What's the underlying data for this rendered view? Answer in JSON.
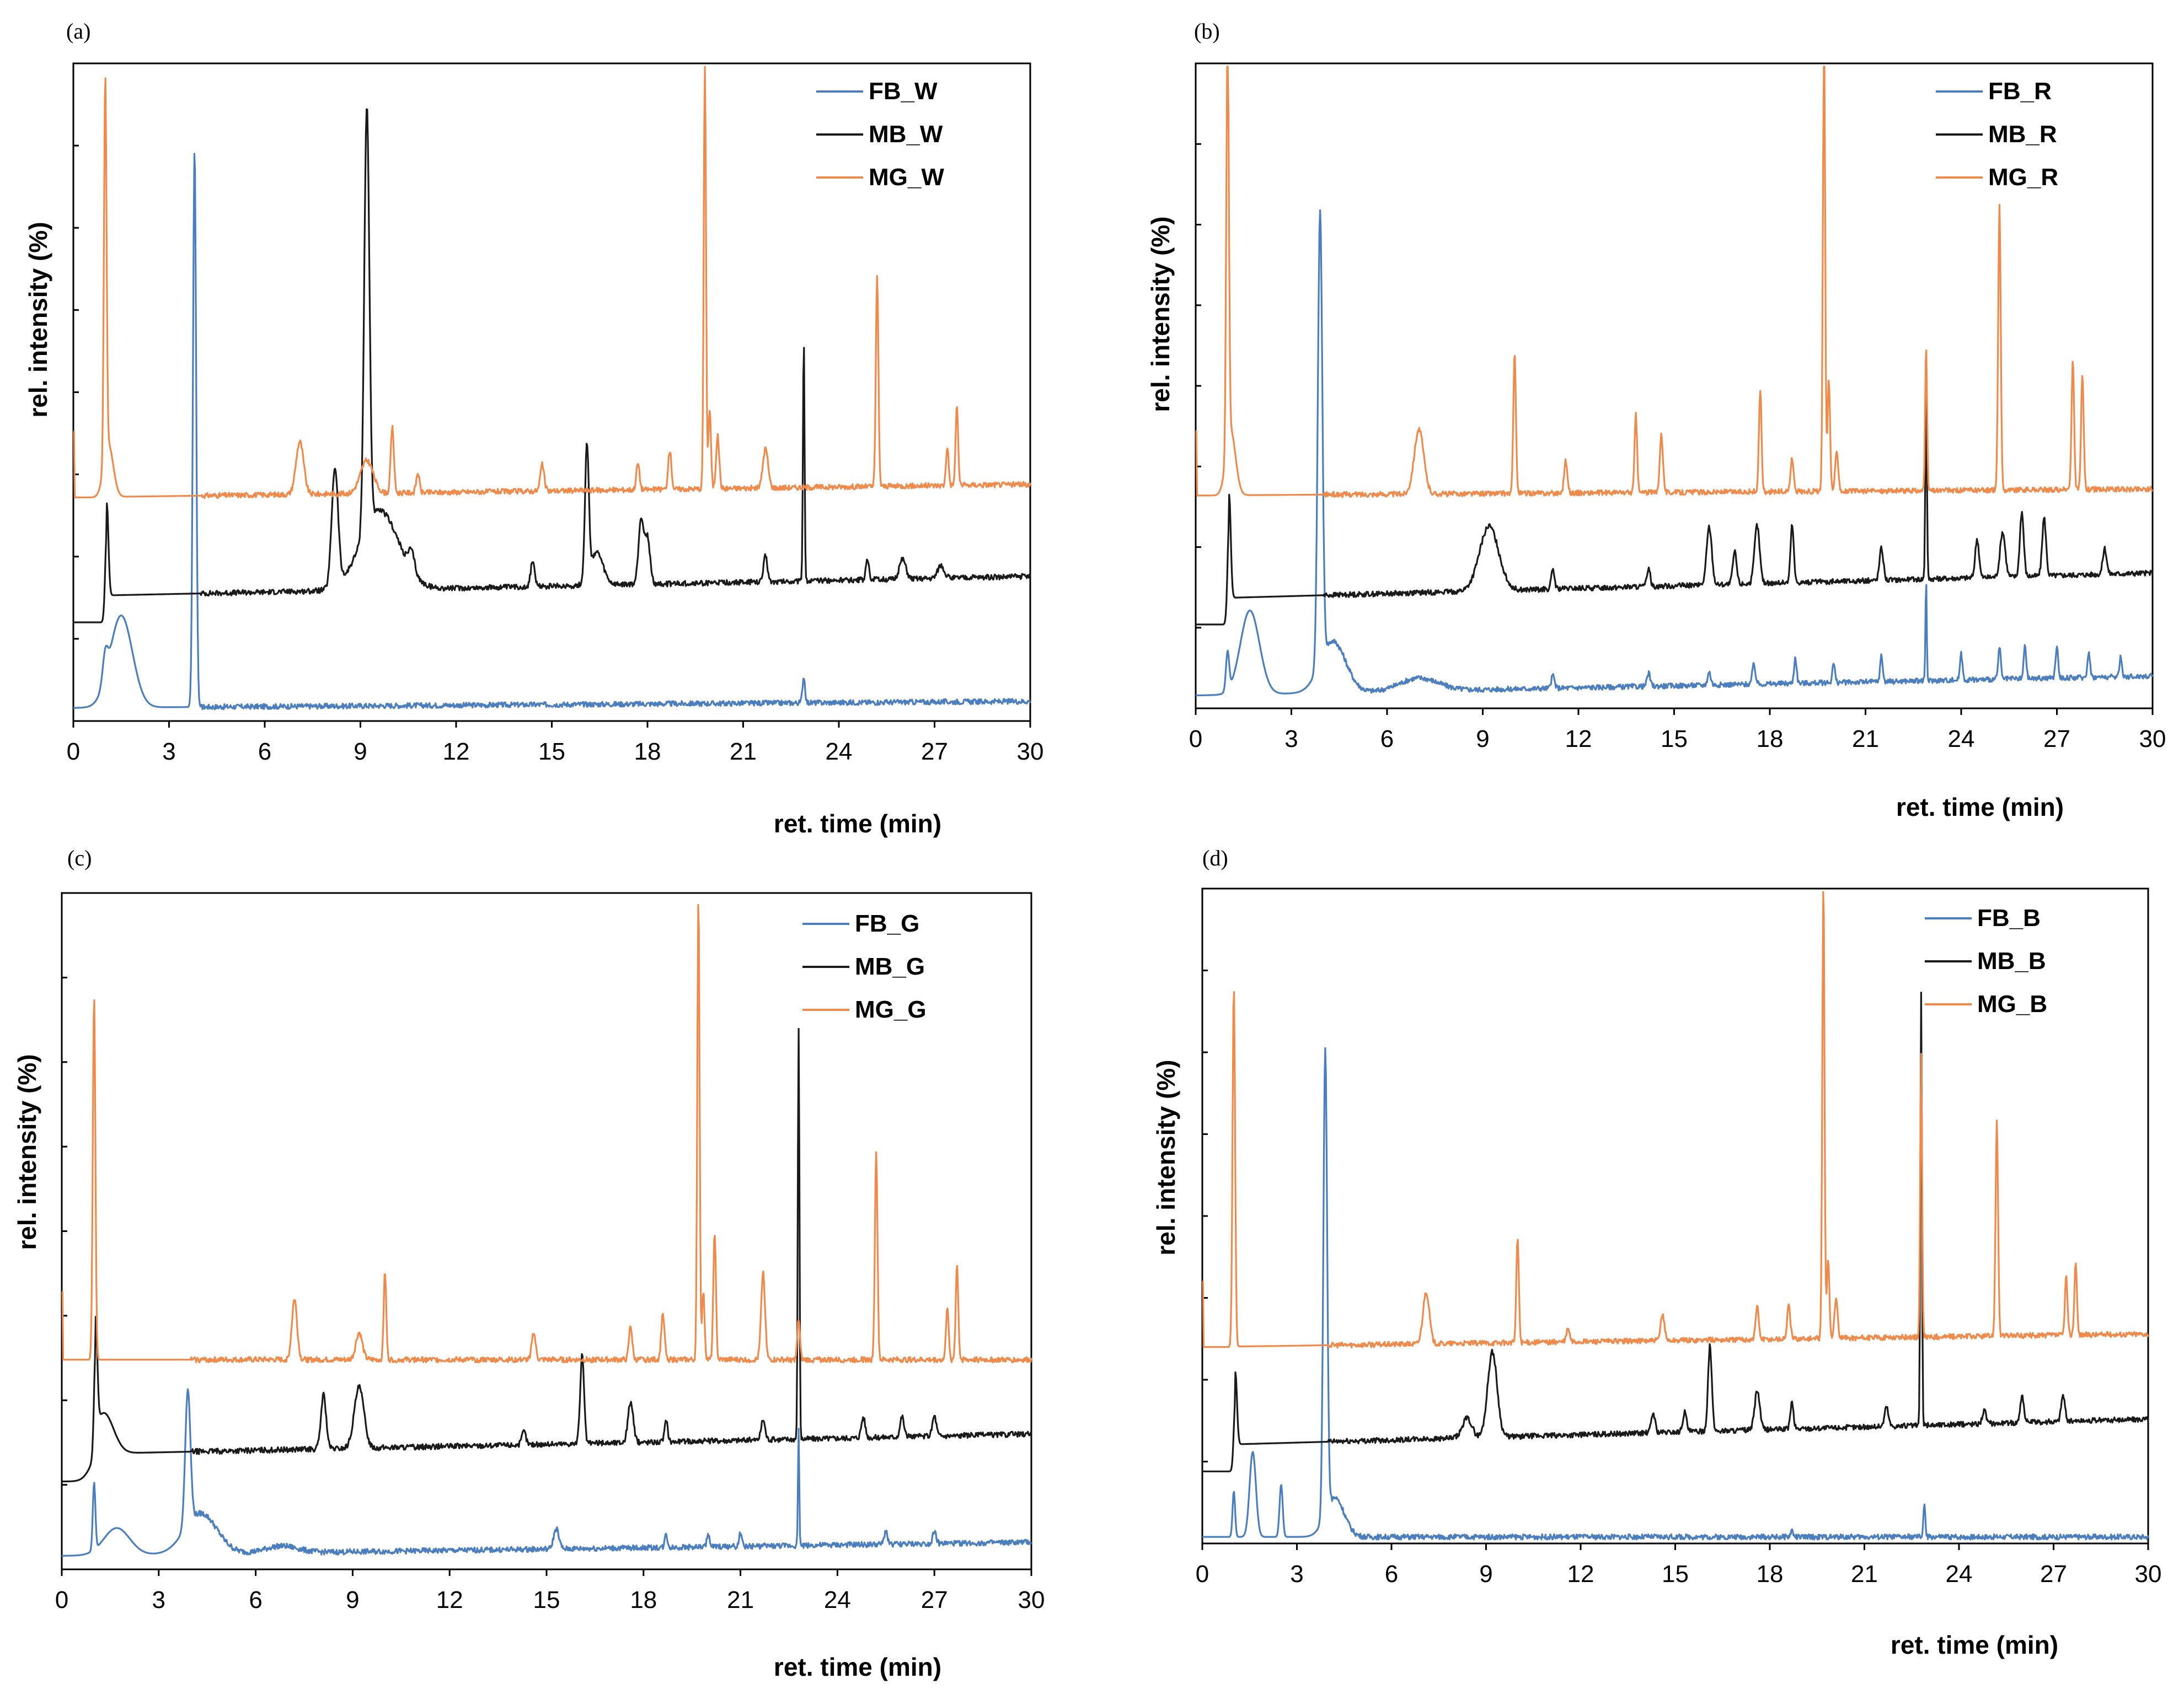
{
  "chart_data": [
    {
      "type": "line",
      "panel_label": "(a)",
      "xlabel": "ret. time (min)",
      "ylabel": "rel. intensity (%)",
      "xlim": [
        0,
        30
      ],
      "xticks": [
        "0",
        "3",
        "6",
        "9",
        "12",
        "15",
        "18",
        "21",
        "24",
        "27",
        "30"
      ],
      "ylim": [
        0,
        100
      ],
      "y_minor_ticks": 8,
      "legend_position": "top-right",
      "series": [
        {
          "name": "FB_W",
          "color": "#4a7ebf",
          "baseline": 2,
          "base_end": 3,
          "peaks": [
            [
              1.0,
              4,
              0.08
            ],
            [
              1.5,
              14,
              0.35
            ],
            [
              3.8,
              85,
              0.05
            ],
            [
              22.9,
              4,
              0.04
            ]
          ]
        },
        {
          "name": "MB_W",
          "color": "#1a1a1a",
          "baseline": 19,
          "base_end": 22,
          "start_jump": 1.05,
          "peaks": [
            [
              1.05,
              14,
              0.05
            ],
            [
              8.2,
              18,
              0.1
            ],
            [
              9.2,
              64,
              0.08
            ],
            [
              9.6,
              12,
              0.6
            ],
            [
              10.6,
              3,
              0.1
            ],
            [
              14.4,
              4,
              0.06
            ],
            [
              16.1,
              20,
              0.06
            ],
            [
              16.4,
              5,
              0.2
            ],
            [
              17.8,
              10,
              0.08
            ],
            [
              18.0,
              7,
              0.08
            ],
            [
              21.7,
              4,
              0.06
            ],
            [
              22.9,
              37,
              0.025
            ],
            [
              24.9,
              3,
              0.05
            ],
            [
              26.0,
              3,
              0.1
            ],
            [
              27.2,
              2,
              0.1
            ]
          ]
        },
        {
          "name": "MG_W",
          "color": "#f08a4b",
          "baseline": 34,
          "base_end": 36,
          "start_jump": 1.0,
          "peaks": [
            [
              1.0,
              58,
              0.04
            ],
            [
              1.1,
              8,
              0.15
            ],
            [
              7.1,
              8,
              0.12
            ],
            [
              9.2,
              5,
              0.2
            ],
            [
              10.0,
              10,
              0.05
            ],
            [
              10.8,
              3,
              0.05
            ],
            [
              14.7,
              4,
              0.06
            ],
            [
              17.7,
              4,
              0.05
            ],
            [
              18.7,
              6,
              0.05
            ],
            [
              19.8,
              66,
              0.035
            ],
            [
              19.95,
              12,
              0.04
            ],
            [
              20.2,
              8,
              0.05
            ],
            [
              21.7,
              6,
              0.08
            ],
            [
              25.2,
              32,
              0.04
            ],
            [
              27.4,
              6,
              0.04
            ],
            [
              27.7,
              12,
              0.04
            ]
          ]
        }
      ]
    },
    {
      "type": "line",
      "panel_label": "(b)",
      "xlabel": "ret. time (min)",
      "ylabel": "rel. intensity (%)",
      "xlim": [
        0,
        30
      ],
      "xticks": [
        "0",
        "3",
        "6",
        "9",
        "12",
        "15",
        "18",
        "21",
        "24",
        "27",
        "30"
      ],
      "ylim": [
        0,
        100
      ],
      "y_minor_ticks": 8,
      "legend_position": "top-right",
      "series": [
        {
          "name": "FB_R",
          "color": "#4a7ebf",
          "baseline": 2,
          "base_end": 5,
          "peaks": [
            [
              1.0,
              6,
              0.05
            ],
            [
              1.7,
              13,
              0.3
            ],
            [
              3.9,
              70,
              0.07
            ],
            [
              4.3,
              8,
              0.4
            ],
            [
              7.0,
              2,
              0.6
            ],
            [
              11.2,
              2,
              0.05
            ],
            [
              14.2,
              2,
              0.05
            ],
            [
              16.1,
              2,
              0.05
            ],
            [
              17.5,
              3,
              0.05
            ],
            [
              18.8,
              4,
              0.04
            ],
            [
              20.0,
              3,
              0.04
            ],
            [
              21.5,
              4,
              0.04
            ],
            [
              22.9,
              16,
              0.02
            ],
            [
              24.0,
              4,
              0.04
            ],
            [
              25.2,
              5,
              0.04
            ],
            [
              26.0,
              5,
              0.04
            ],
            [
              27.0,
              5,
              0.04
            ],
            [
              28.0,
              4,
              0.04
            ],
            [
              29.0,
              3,
              0.04
            ]
          ]
        },
        {
          "name": "MB_R",
          "color": "#1a1a1a",
          "baseline": 17,
          "base_end": 21,
          "start_jump": 1.05,
          "peaks": [
            [
              1.05,
              16,
              0.05
            ],
            [
              9.2,
              10,
              0.3
            ],
            [
              11.2,
              3,
              0.05
            ],
            [
              14.2,
              3,
              0.05
            ],
            [
              16.1,
              9,
              0.08
            ],
            [
              16.9,
              5,
              0.06
            ],
            [
              17.6,
              9,
              0.08
            ],
            [
              18.7,
              9,
              0.05
            ],
            [
              21.5,
              5,
              0.06
            ],
            [
              22.9,
              30,
              0.025
            ],
            [
              24.5,
              6,
              0.06
            ],
            [
              25.3,
              7,
              0.08
            ],
            [
              25.9,
              10,
              0.06
            ],
            [
              26.6,
              9,
              0.06
            ],
            [
              28.5,
              4,
              0.06
            ]
          ]
        },
        {
          "name": "MG_R",
          "color": "#f08a4b",
          "baseline": 33,
          "base_end": 34,
          "start_jump": 1.0,
          "peaks": [
            [
              1.0,
              65,
              0.04
            ],
            [
              1.1,
              10,
              0.15
            ],
            [
              7.0,
              10,
              0.15
            ],
            [
              10.0,
              22,
              0.04
            ],
            [
              11.6,
              5,
              0.05
            ],
            [
              13.8,
              12,
              0.04
            ],
            [
              14.6,
              9,
              0.05
            ],
            [
              17.7,
              16,
              0.04
            ],
            [
              18.7,
              5,
              0.05
            ],
            [
              19.7,
              72,
              0.035
            ],
            [
              19.85,
              17,
              0.04
            ],
            [
              20.1,
              6,
              0.05
            ],
            [
              22.9,
              22,
              0.03
            ],
            [
              25.2,
              44,
              0.04
            ],
            [
              27.5,
              20,
              0.04
            ],
            [
              27.8,
              18,
              0.04
            ]
          ]
        }
      ]
    },
    {
      "type": "line",
      "panel_label": "(c)",
      "xlabel": "ret. time (min)",
      "ylabel": "rel. intensity (%)",
      "xlim": [
        0,
        30
      ],
      "xticks": [
        "0",
        "3",
        "6",
        "9",
        "12",
        "15",
        "18",
        "21",
        "24",
        "27",
        "30"
      ],
      "ylim": [
        0,
        100
      ],
      "y_minor_ticks": 8,
      "legend_position": "top-right",
      "series": [
        {
          "name": "FB_G",
          "color": "#4a7ebf",
          "baseline": 2,
          "base_end": 4,
          "peaks": [
            [
              1.0,
              10,
              0.04
            ],
            [
              1.7,
              4,
              0.4
            ],
            [
              3.9,
              20,
              0.08
            ],
            [
              4.3,
              6,
              0.5
            ],
            [
              6.8,
              1,
              0.5
            ],
            [
              15.3,
              3,
              0.08
            ],
            [
              18.7,
              2,
              0.04
            ],
            [
              20.0,
              2,
              0.04
            ],
            [
              21.0,
              2,
              0.04
            ],
            [
              22.8,
              17,
              0.02
            ],
            [
              25.5,
              2,
              0.05
            ],
            [
              27.0,
              2,
              0.05
            ]
          ]
        },
        {
          "name": "MB_G",
          "color": "#1a1a1a",
          "baseline": 17,
          "base_end": 20,
          "start_jump": 1.05,
          "peaks": [
            [
              1.05,
              16,
              0.05
            ],
            [
              1.3,
              6,
              0.3
            ],
            [
              8.1,
              8,
              0.08
            ],
            [
              9.2,
              9,
              0.15
            ],
            [
              14.3,
              2,
              0.06
            ],
            [
              16.1,
              13,
              0.06
            ],
            [
              17.6,
              6,
              0.08
            ],
            [
              18.7,
              3,
              0.05
            ],
            [
              21.7,
              3,
              0.06
            ],
            [
              22.8,
              61,
              0.025
            ],
            [
              24.8,
              3,
              0.06
            ],
            [
              26.0,
              3,
              0.06
            ],
            [
              27.0,
              3,
              0.06
            ]
          ]
        },
        {
          "name": "MG_G",
          "color": "#f08a4b",
          "baseline": 31,
          "base_end": 31,
          "start_jump": 1.0,
          "peaks": [
            [
              1.0,
              54,
              0.04
            ],
            [
              7.2,
              9,
              0.08
            ],
            [
              9.2,
              4,
              0.1
            ],
            [
              10.0,
              13,
              0.04
            ],
            [
              14.6,
              4,
              0.06
            ],
            [
              17.6,
              5,
              0.05
            ],
            [
              18.6,
              7,
              0.05
            ],
            [
              19.7,
              69,
              0.035
            ],
            [
              19.85,
              10,
              0.04
            ],
            [
              20.2,
              19,
              0.04
            ],
            [
              21.7,
              13,
              0.06
            ],
            [
              22.8,
              6,
              0.04
            ],
            [
              25.2,
              31,
              0.04
            ],
            [
              27.4,
              8,
              0.04
            ],
            [
              27.7,
              14,
              0.04
            ]
          ]
        }
      ]
    },
    {
      "type": "line",
      "panel_label": "(d)",
      "xlabel": "ret. time (min)",
      "ylabel": "rel. intensity (%)",
      "xlim": [
        0,
        30
      ],
      "xticks": [
        "0",
        "3",
        "6",
        "9",
        "12",
        "15",
        "18",
        "21",
        "24",
        "27",
        "30"
      ],
      "ylim": [
        0,
        100
      ],
      "y_minor_ticks": 8,
      "legend_position": "top-right",
      "series": [
        {
          "name": "FB_B",
          "color": "#4a7ebf",
          "baseline": 1,
          "base_end": 1,
          "peaks": [
            [
              1.0,
              7,
              0.04
            ],
            [
              1.6,
              13,
              0.1
            ],
            [
              2.5,
              8,
              0.05
            ],
            [
              3.9,
              71,
              0.06
            ],
            [
              4.2,
              6,
              0.3
            ],
            [
              18.7,
              1,
              0.04
            ],
            [
              22.9,
              5,
              0.03
            ]
          ]
        },
        {
          "name": "MB_B",
          "color": "#1a1a1a",
          "baseline": 15,
          "base_end": 19,
          "start_jump": 1.05,
          "peaks": [
            [
              1.05,
              11,
              0.05
            ],
            [
              8.4,
              3,
              0.15
            ],
            [
              9.2,
              13,
              0.15
            ],
            [
              14.3,
              3,
              0.06
            ],
            [
              15.3,
              3,
              0.06
            ],
            [
              16.1,
              13,
              0.06
            ],
            [
              17.6,
              6,
              0.08
            ],
            [
              18.7,
              4,
              0.05
            ],
            [
              21.7,
              3,
              0.06
            ],
            [
              22.8,
              66,
              0.025
            ],
            [
              24.8,
              2,
              0.06
            ],
            [
              26.0,
              4,
              0.06
            ],
            [
              27.3,
              4,
              0.06
            ]
          ]
        },
        {
          "name": "MG_B",
          "color": "#f08a4b",
          "baseline": 30,
          "base_end": 32,
          "start_jump": 1.0,
          "peaks": [
            [
              1.0,
              55,
              0.04
            ],
            [
              7.1,
              8,
              0.1
            ],
            [
              10.0,
              16,
              0.04
            ],
            [
              11.6,
              2,
              0.05
            ],
            [
              14.6,
              4,
              0.06
            ],
            [
              17.6,
              5,
              0.05
            ],
            [
              18.6,
              5,
              0.05
            ],
            [
              19.7,
              70,
              0.035
            ],
            [
              19.85,
              12,
              0.04
            ],
            [
              20.1,
              6,
              0.05
            ],
            [
              22.8,
              43,
              0.03
            ],
            [
              25.2,
              33,
              0.04
            ],
            [
              27.4,
              9,
              0.04
            ],
            [
              27.7,
              11,
              0.04
            ]
          ]
        }
      ]
    }
  ]
}
